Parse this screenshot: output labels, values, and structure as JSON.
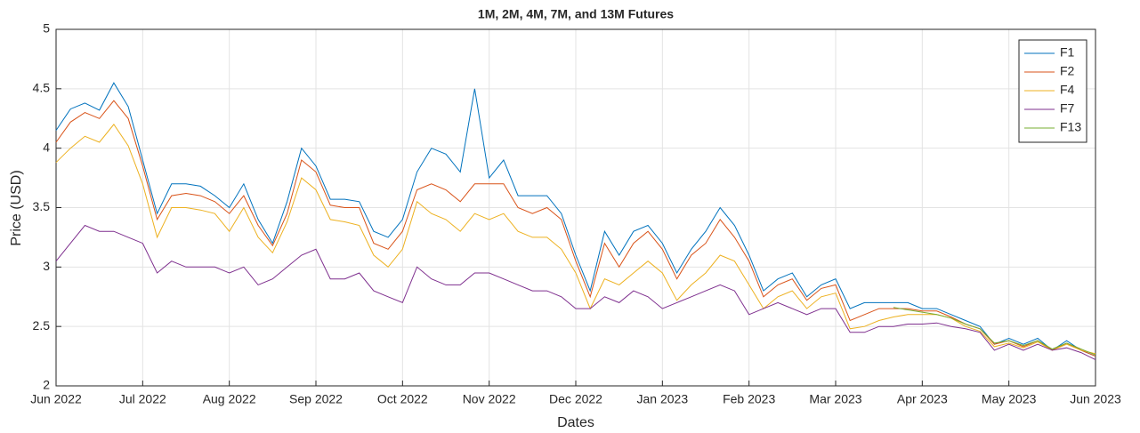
{
  "chart_data": {
    "type": "line",
    "title": "1M, 2M, 4M, 7M, and 13M Futures",
    "x_label": "Dates",
    "y_label": "Price (USD)",
    "categories": [
      "Jun 2022",
      null,
      null,
      null,
      null,
      null,
      "Jul 2022",
      null,
      null,
      null,
      null,
      null,
      "Aug 2022",
      null,
      null,
      null,
      null,
      null,
      "Sep 2022",
      null,
      null,
      null,
      null,
      null,
      "Oct 2022",
      null,
      null,
      null,
      null,
      null,
      "Nov 2022",
      null,
      null,
      null,
      null,
      null,
      "Dec 2022",
      null,
      null,
      null,
      null,
      null,
      "Jan 2023",
      null,
      null,
      null,
      null,
      null,
      "Feb 2023",
      null,
      null,
      null,
      null,
      null,
      "Mar 2023",
      null,
      null,
      null,
      null,
      null,
      "Apr 2023",
      null,
      null,
      null,
      null,
      null,
      "May 2023",
      null,
      null,
      null,
      null,
      null,
      "Jun 2023"
    ],
    "series": [
      {
        "name": "F1",
        "color": "#0072bd",
        "values": [
          4.15,
          4.33,
          4.38,
          4.32,
          4.55,
          4.35,
          3.9,
          3.45,
          3.7,
          3.7,
          3.68,
          3.6,
          3.5,
          3.7,
          3.4,
          3.2,
          3.55,
          4.0,
          3.85,
          3.57,
          3.57,
          3.55,
          3.3,
          3.25,
          3.4,
          3.8,
          4.0,
          3.95,
          3.8,
          4.5,
          3.75,
          3.9,
          3.6,
          3.6,
          3.6,
          3.45,
          3.1,
          2.8,
          3.3,
          3.1,
          3.3,
          3.35,
          3.2,
          2.95,
          3.15,
          3.3,
          3.5,
          3.35,
          3.1,
          2.8,
          2.9,
          2.95,
          2.75,
          2.85,
          2.9,
          2.65,
          2.7,
          2.7,
          2.7,
          2.7,
          2.65,
          2.65,
          2.6,
          2.55,
          2.5,
          2.35,
          2.4,
          2.35,
          2.4,
          2.3,
          2.38,
          2.3,
          2.25
        ]
      },
      {
        "name": "F2",
        "color": "#d95319",
        "values": [
          4.05,
          4.22,
          4.3,
          4.25,
          4.4,
          4.25,
          3.85,
          3.4,
          3.6,
          3.62,
          3.6,
          3.55,
          3.45,
          3.6,
          3.35,
          3.18,
          3.45,
          3.9,
          3.8,
          3.52,
          3.5,
          3.5,
          3.2,
          3.15,
          3.3,
          3.65,
          3.7,
          3.65,
          3.55,
          3.7,
          3.7,
          3.7,
          3.5,
          3.45,
          3.5,
          3.4,
          3.05,
          2.75,
          3.2,
          3.0,
          3.2,
          3.3,
          3.15,
          2.9,
          3.1,
          3.2,
          3.4,
          3.25,
          3.05,
          2.75,
          2.85,
          2.9,
          2.72,
          2.82,
          2.85,
          2.55,
          2.6,
          2.65,
          2.65,
          2.65,
          2.63,
          2.63,
          2.58,
          2.52,
          2.48,
          2.35,
          2.38,
          2.33,
          2.38,
          2.3,
          2.36,
          2.3,
          2.25
        ]
      },
      {
        "name": "F4",
        "color": "#edb120",
        "values": [
          3.88,
          4.0,
          4.1,
          4.05,
          4.2,
          4.02,
          3.7,
          3.25,
          3.5,
          3.5,
          3.48,
          3.45,
          3.3,
          3.5,
          3.25,
          3.12,
          3.38,
          3.75,
          3.65,
          3.4,
          3.38,
          3.35,
          3.1,
          3.0,
          3.15,
          3.55,
          3.45,
          3.4,
          3.3,
          3.45,
          3.4,
          3.45,
          3.3,
          3.25,
          3.25,
          3.15,
          2.95,
          2.65,
          2.9,
          2.85,
          2.95,
          3.05,
          2.95,
          2.72,
          2.85,
          2.95,
          3.1,
          3.05,
          2.85,
          2.65,
          2.75,
          2.8,
          2.65,
          2.75,
          2.78,
          2.48,
          2.5,
          2.55,
          2.58,
          2.6,
          2.6,
          2.6,
          2.57,
          2.5,
          2.46,
          2.33,
          2.36,
          2.32,
          2.37,
          2.3,
          2.35,
          2.3,
          2.27
        ]
      },
      {
        "name": "F7",
        "color": "#7e2f8e",
        "values": [
          3.05,
          3.2,
          3.35,
          3.3,
          3.3,
          3.25,
          3.2,
          2.95,
          3.05,
          3.0,
          3.0,
          3.0,
          2.95,
          3.0,
          2.85,
          2.9,
          3.0,
          3.1,
          3.15,
          2.9,
          2.9,
          2.95,
          2.8,
          2.75,
          2.7,
          3.0,
          2.9,
          2.85,
          2.85,
          2.95,
          2.95,
          2.9,
          2.85,
          2.8,
          2.8,
          2.75,
          2.65,
          2.65,
          2.75,
          2.7,
          2.8,
          2.75,
          2.65,
          2.7,
          2.75,
          2.8,
          2.85,
          2.8,
          2.6,
          2.65,
          2.7,
          2.65,
          2.6,
          2.65,
          2.65,
          2.45,
          2.45,
          2.5,
          2.5,
          2.52,
          2.52,
          2.53,
          2.5,
          2.48,
          2.45,
          2.3,
          2.35,
          2.3,
          2.35,
          2.3,
          2.32,
          2.28,
          2.22
        ]
      },
      {
        "name": "F13",
        "color": "#77ac30",
        "values": [
          null,
          null,
          null,
          null,
          null,
          null,
          null,
          null,
          null,
          null,
          null,
          null,
          null,
          null,
          null,
          null,
          null,
          null,
          null,
          null,
          null,
          null,
          null,
          null,
          null,
          null,
          null,
          null,
          null,
          null,
          null,
          null,
          null,
          null,
          null,
          null,
          null,
          null,
          null,
          null,
          null,
          null,
          null,
          null,
          null,
          null,
          null,
          null,
          null,
          null,
          null,
          null,
          null,
          null,
          null,
          null,
          null,
          null,
          2.66,
          2.64,
          2.62,
          2.6,
          2.57,
          2.52,
          2.48,
          2.36,
          2.38,
          2.34,
          2.38,
          2.31,
          2.36,
          2.31,
          2.26
        ]
      }
    ],
    "ylim": [
      2,
      5
    ],
    "yticks": [
      2,
      2.5,
      3,
      3.5,
      4,
      4.5,
      5
    ],
    "grid": true,
    "legend": "top-right"
  }
}
